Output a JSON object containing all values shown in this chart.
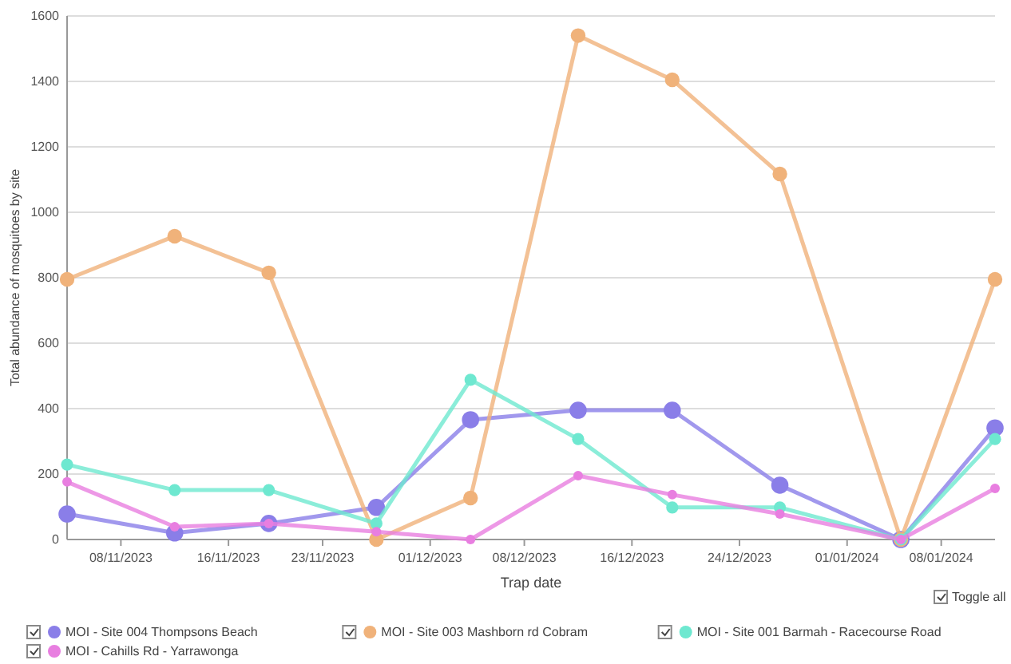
{
  "chart_data": {
    "type": "line",
    "xlabel": "Trap date",
    "ylabel": "Total abundance of mosquitoes by site",
    "x": [
      "2023-11-04",
      "2023-11-12",
      "2023-11-19",
      "2023-11-27",
      "2023-12-04",
      "2023-12-12",
      "2023-12-19",
      "2023-12-27",
      "2024-01-05",
      "2024-01-12"
    ],
    "series": [
      {
        "name": "MOI - Site 004 Thompsons Beach",
        "color": "#8a7ee8",
        "values": [
          78,
          20,
          49,
          98,
          366,
          395,
          395,
          166,
          0,
          341
        ]
      },
      {
        "name": "MOI - Site 003 Mashborn rd Cobram",
        "color": "#f0b27a",
        "values": [
          795,
          927,
          815,
          0,
          127,
          1540,
          1405,
          1117,
          0,
          795
        ]
      },
      {
        "name": "MOI - Site 001 Barmah - Racecourse Road",
        "color": "#6ee8d0",
        "values": [
          229,
          151,
          151,
          49,
          488,
          307,
          98,
          98,
          0,
          307
        ]
      },
      {
        "name": "MOI - Cahills Rd - Yarrawonga",
        "color": "#e87ee0",
        "values": [
          176,
          39,
          49,
          24,
          0,
          195,
          137,
          78,
          0,
          156
        ]
      }
    ],
    "xlim": [
      "2023-11-04",
      "2024-01-12"
    ],
    "xticks": [
      {
        "value": "2023-11-08",
        "label": "08/11/2023"
      },
      {
        "value": "2023-11-16",
        "label": "16/11/2023"
      },
      {
        "value": "2023-11-23",
        "label": "23/11/2023"
      },
      {
        "value": "2023-12-01",
        "label": "01/12/2023"
      },
      {
        "value": "2023-12-08",
        "label": "08/12/2023"
      },
      {
        "value": "2023-12-16",
        "label": "16/12/2023"
      },
      {
        "value": "2023-12-24",
        "label": "24/12/2023"
      },
      {
        "value": "2024-01-01",
        "label": "01/01/2024"
      },
      {
        "value": "2024-01-08",
        "label": "08/01/2024"
      }
    ],
    "ylim": [
      0,
      1600
    ],
    "yticks": [
      0,
      200,
      400,
      600,
      800,
      1000,
      1200,
      1400,
      1600
    ],
    "grid": "y",
    "legend": "bottom",
    "marker": "circle",
    "line_style": "solid",
    "annotations": [
      "Toggle all"
    ]
  }
}
